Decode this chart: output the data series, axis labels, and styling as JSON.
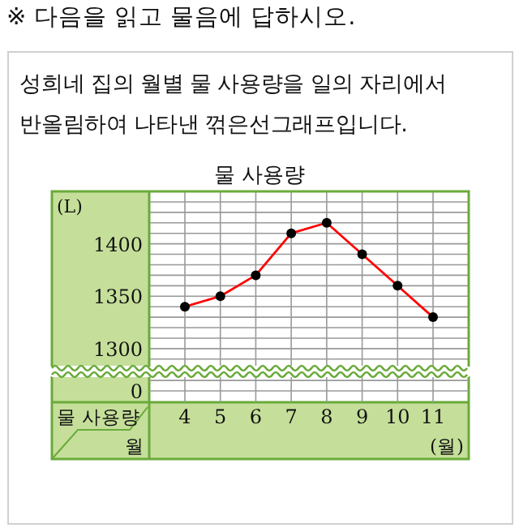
{
  "chart_data": {
    "type": "line",
    "title": "물 사용량",
    "ylabel": "(L)",
    "xlabel": "(월)",
    "annotations": [
      "※ 다음을 읽고 물음에 답하시오.",
      "성희네 집의 월별 물 사용량을 일의 자리에서 반올림하여 나타낸 꺾은선그래프입니다.",
      "물 사용량",
      "월",
      "0"
    ],
    "categories": [
      "4",
      "5",
      "6",
      "7",
      "8",
      "9",
      "10",
      "11"
    ],
    "series": [
      {
        "color": "#ff0000",
        "values": [
          1340,
          1350,
          1370,
          1410,
          1420,
          1390,
          1360,
          1330
        ]
      }
    ],
    "ylim": [
      1290,
      1450
    ],
    "yticks": [
      1300,
      1350,
      1400
    ],
    "grid": true,
    "marker": "circle",
    "line_style": "solid"
  }
}
